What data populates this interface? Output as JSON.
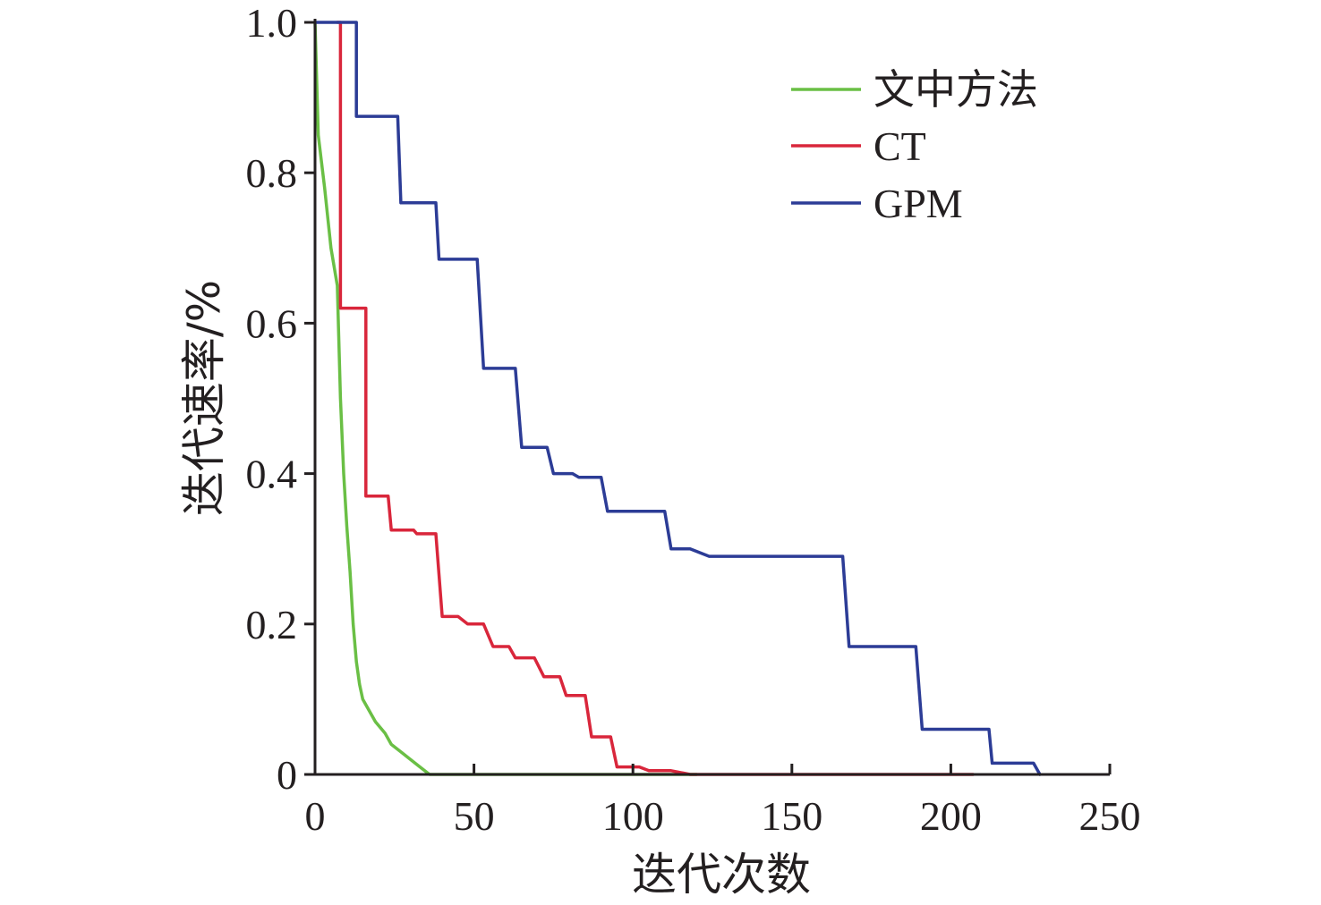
{
  "chart_data": {
    "type": "line",
    "title": "",
    "xlabel": "迭代次数",
    "ylabel": "迭代速率/%",
    "xlim": [
      0,
      250
    ],
    "ylim": [
      0,
      1.0
    ],
    "x_ticks": [
      0,
      50,
      100,
      150,
      200,
      250
    ],
    "y_ticks": [
      0,
      0.2,
      0.4,
      0.6,
      0.8,
      1.0
    ],
    "x_tick_labels": [
      "0",
      "50",
      "100",
      "150",
      "200",
      "250"
    ],
    "y_tick_labels": [
      "0",
      "0.2",
      "0.4",
      "0.6",
      "0.8",
      "1.0"
    ],
    "grid": false,
    "legend_position": "top-right",
    "series": [
      {
        "name": "文中方法",
        "color": "#6abf45",
        "points": [
          [
            0,
            1.0
          ],
          [
            1,
            0.85
          ],
          [
            3,
            0.78
          ],
          [
            5,
            0.7
          ],
          [
            7,
            0.65
          ],
          [
            8,
            0.5
          ],
          [
            9,
            0.4
          ],
          [
            10,
            0.33
          ],
          [
            11,
            0.27
          ],
          [
            12,
            0.2
          ],
          [
            13,
            0.15
          ],
          [
            14,
            0.12
          ],
          [
            15,
            0.1
          ],
          [
            17,
            0.085
          ],
          [
            19,
            0.07
          ],
          [
            22,
            0.055
          ],
          [
            24,
            0.04
          ],
          [
            27,
            0.03
          ],
          [
            30,
            0.02
          ],
          [
            33,
            0.01
          ],
          [
            36,
            0.0
          ],
          [
            120,
            0.0
          ]
        ]
      },
      {
        "name": "CT",
        "color": "#d9263b",
        "points": [
          [
            7,
            1.0
          ],
          [
            8,
            1.0
          ],
          [
            8,
            0.62
          ],
          [
            16,
            0.62
          ],
          [
            16,
            0.37
          ],
          [
            23,
            0.37
          ],
          [
            24,
            0.325
          ],
          [
            31,
            0.325
          ],
          [
            32,
            0.32
          ],
          [
            38,
            0.32
          ],
          [
            40,
            0.21
          ],
          [
            45,
            0.21
          ],
          [
            48,
            0.2
          ],
          [
            53,
            0.2
          ],
          [
            56,
            0.17
          ],
          [
            61,
            0.17
          ],
          [
            63,
            0.155
          ],
          [
            69,
            0.155
          ],
          [
            72,
            0.13
          ],
          [
            77,
            0.13
          ],
          [
            79,
            0.105
          ],
          [
            85,
            0.105
          ],
          [
            87,
            0.05
          ],
          [
            93,
            0.05
          ],
          [
            95,
            0.01
          ],
          [
            102,
            0.01
          ],
          [
            105,
            0.005
          ],
          [
            112,
            0.005
          ],
          [
            118,
            0.0
          ],
          [
            207,
            0.0
          ]
        ]
      },
      {
        "name": "GPM",
        "color": "#2c3c96",
        "points": [
          [
            0,
            1.0
          ],
          [
            13,
            1.0
          ],
          [
            13,
            0.875
          ],
          [
            26,
            0.875
          ],
          [
            27,
            0.76
          ],
          [
            38,
            0.76
          ],
          [
            39,
            0.685
          ],
          [
            51,
            0.685
          ],
          [
            53,
            0.54
          ],
          [
            63,
            0.54
          ],
          [
            65,
            0.435
          ],
          [
            73,
            0.435
          ],
          [
            75,
            0.4
          ],
          [
            81,
            0.4
          ],
          [
            83,
            0.395
          ],
          [
            90,
            0.395
          ],
          [
            92,
            0.35
          ],
          [
            97,
            0.35
          ],
          [
            99,
            0.35
          ],
          [
            110,
            0.35
          ],
          [
            112,
            0.3
          ],
          [
            118,
            0.3
          ],
          [
            124,
            0.29
          ],
          [
            166,
            0.29
          ],
          [
            168,
            0.17
          ],
          [
            189,
            0.17
          ],
          [
            191,
            0.06
          ],
          [
            212,
            0.06
          ],
          [
            213,
            0.015
          ],
          [
            226,
            0.015
          ],
          [
            228,
            0.0
          ]
        ]
      }
    ]
  },
  "colors": {
    "axis": "#231f20",
    "background": "#ffffff"
  }
}
